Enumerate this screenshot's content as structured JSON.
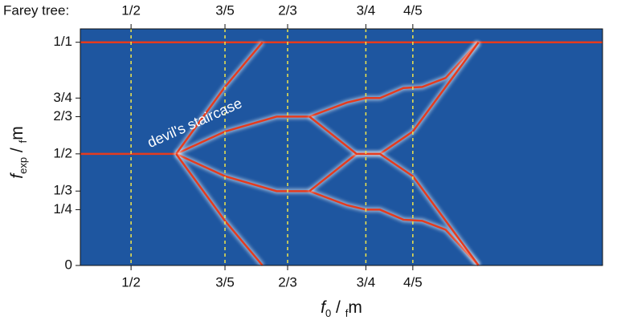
{
  "chart_data": {
    "type": "line",
    "farey_label": "Farey tree:",
    "annotation": "devil's staircase",
    "xlabel": [
      "f",
      "0",
      " / ",
      "f",
      "m"
    ],
    "ylabel": [
      "f",
      "exp",
      " / ",
      "f",
      "m"
    ],
    "xlim": [
      0.446,
      1.002
    ],
    "ylim": [
      0,
      1.06
    ],
    "xticks": [
      {
        "value": 0.5,
        "label": "1/2"
      },
      {
        "value": 0.6,
        "label": "3/5"
      },
      {
        "value": 0.6667,
        "label": "2/3"
      },
      {
        "value": 0.75,
        "label": "3/4"
      },
      {
        "value": 0.8,
        "label": "4/5"
      }
    ],
    "yticks": [
      0,
      {
        "value": 0.25,
        "label": "1/4"
      },
      {
        "value": 0.3333,
        "label": "1/3"
      },
      {
        "value": 0.5,
        "label": "1/2"
      },
      {
        "value": 0.6667,
        "label": "2/3"
      },
      {
        "value": 0.75,
        "label": "3/4"
      },
      {
        "value": 1,
        "label": "1/1"
      }
    ],
    "guide_color": "#f2e64a",
    "background_color": "#1e56a0",
    "series": [
      {
        "color": "#e53b1e",
        "x": [
          0.446,
          1.002
        ],
        "values": [
          1,
          1
        ]
      },
      {
        "color": "#e53b1e",
        "x": [
          0.446,
          0.548
        ],
        "values": [
          0.5,
          0.5
        ]
      },
      {
        "color": "#e53b1e",
        "x": [
          0.548,
          0.6,
          0.655,
          0.69,
          0.73,
          0.75,
          0.765,
          0.79,
          0.81,
          0.835,
          0.87
        ],
        "values": [
          0.5,
          0.6,
          0.667,
          0.667,
          0.73,
          0.75,
          0.75,
          0.795,
          0.8,
          0.84,
          1
        ]
      },
      {
        "color": "#e53b1e",
        "x": [
          0.548,
          0.6,
          0.655,
          0.69,
          0.73,
          0.75,
          0.765,
          0.79,
          0.81,
          0.835,
          0.87
        ],
        "values": [
          0.5,
          0.4,
          0.333,
          0.333,
          0.27,
          0.25,
          0.25,
          0.205,
          0.2,
          0.16,
          0
        ]
      },
      {
        "color": "#e53b1e",
        "x": [
          0.548,
          0.6,
          0.64
        ],
        "values": [
          0.5,
          0.8,
          1
        ]
      },
      {
        "color": "#e53b1e",
        "x": [
          0.548,
          0.6,
          0.64
        ],
        "values": [
          0.5,
          0.2,
          0
        ]
      },
      {
        "color": "#e53b1e",
        "x": [
          0.69,
          0.74,
          0.765,
          0.8,
          0.87
        ],
        "values": [
          0.333,
          0.5,
          0.5,
          0.6,
          1
        ]
      },
      {
        "color": "#e53b1e",
        "x": [
          0.69,
          0.74,
          0.765,
          0.8,
          0.87
        ],
        "values": [
          0.667,
          0.5,
          0.5,
          0.4,
          0
        ]
      }
    ]
  }
}
